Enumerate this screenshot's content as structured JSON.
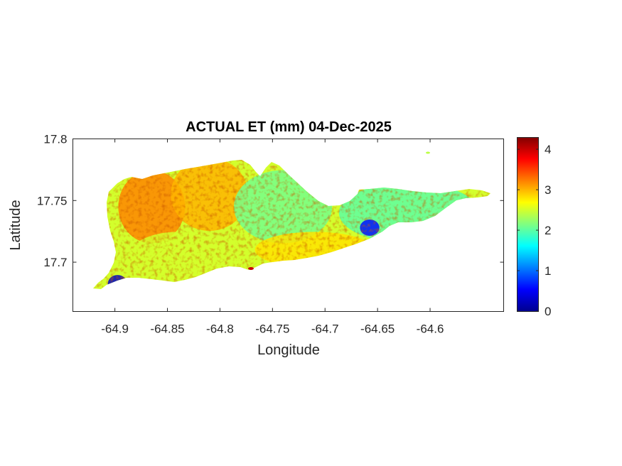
{
  "chart_data": {
    "type": "heatmap",
    "title": "ACTUAL ET (mm) 04-Dec-2025",
    "xlabel": "Longitude",
    "ylabel": "Latitude",
    "xlim": [
      -64.94,
      -64.53
    ],
    "ylim": [
      17.66,
      17.8
    ],
    "x_ticks": [
      -64.9,
      -64.85,
      -64.8,
      -64.75,
      -64.7,
      -64.65,
      -64.6
    ],
    "x_tick_labels": [
      "-64.9",
      "-64.85",
      "-64.8",
      "-64.75",
      "-64.7",
      "-64.65",
      "-64.6"
    ],
    "y_ticks": [
      17.7,
      17.75,
      17.8
    ],
    "y_tick_labels": [
      "17.7",
      "17.75",
      "17.8"
    ],
    "colorbar": {
      "colormap": "jet",
      "range": [
        0,
        4.3
      ],
      "ticks": [
        0,
        1,
        2,
        3,
        4
      ],
      "tick_labels": [
        "0",
        "1",
        "2",
        "3",
        "4"
      ]
    },
    "grid": false,
    "regions": [
      {
        "lon_range": [
          -64.89,
          -64.84
        ],
        "lat_range": [
          17.72,
          17.77
        ],
        "approx_value": 3.2
      },
      {
        "lon_range": [
          -64.84,
          -64.78
        ],
        "lat_range": [
          17.73,
          17.78
        ],
        "approx_value": 3.0
      },
      {
        "lon_range": [
          -64.88,
          -64.8
        ],
        "lat_range": [
          17.69,
          17.72
        ],
        "approx_value": 2.5
      },
      {
        "lon_range": [
          -64.78,
          -64.7
        ],
        "lat_range": [
          17.72,
          17.77
        ],
        "approx_value": 2.1
      },
      {
        "lon_range": [
          -64.76,
          -64.66
        ],
        "lat_range": [
          17.7,
          17.72
        ],
        "approx_value": 2.8
      },
      {
        "lon_range": [
          -64.68,
          -64.56
        ],
        "lat_range": [
          17.72,
          17.76
        ],
        "approx_value": 2.0
      },
      {
        "lon_range": [
          -64.9,
          -64.895
        ],
        "lat_range": [
          17.68,
          17.685
        ],
        "approx_value": 0.3
      },
      {
        "lon_range": [
          -64.66,
          -64.655
        ],
        "lat_range": [
          17.726,
          17.73
        ],
        "approx_value": 0.6
      }
    ]
  }
}
